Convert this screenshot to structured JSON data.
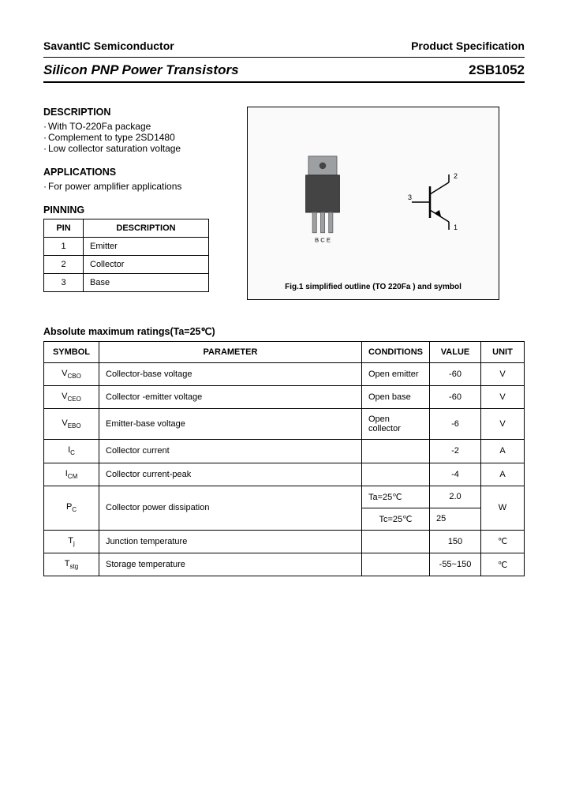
{
  "header": {
    "company": "SavantIC Semiconductor",
    "doc_type": "Product Specification",
    "title": "Silicon PNP Power Transistors",
    "part_number": "2SB1052"
  },
  "description": {
    "heading": "DESCRIPTION",
    "items": [
      "With TO-220Fa package",
      "Complement to type 2SD1480",
      "Low collector saturation voltage"
    ]
  },
  "applications": {
    "heading": "APPLICATIONS",
    "items": [
      "For power amplifier applications"
    ]
  },
  "pinning": {
    "heading": "PINNING",
    "columns": [
      "PIN",
      "DESCRIPTION"
    ],
    "rows": [
      [
        "1",
        "Emitter"
      ],
      [
        "2",
        "Collector"
      ],
      [
        "3",
        "Base"
      ]
    ]
  },
  "figure": {
    "caption": "Fig.1 simplified outline (TO 220Fa ) and symbol",
    "pin_labels": "B  C  E",
    "symbol_labels": {
      "collector": "2",
      "base": "3",
      "emitter": "1"
    },
    "package_body_color": "#444444",
    "package_tab_color": "#9da0a3",
    "lead_color": "#9da0a3",
    "outline_bg": "#fafafa"
  },
  "ratings": {
    "heading": "Absolute maximum ratings(Ta=25℃)",
    "columns": [
      "SYMBOL",
      "PARAMETER",
      "CONDITIONS",
      "VALUE",
      "UNIT"
    ],
    "rows": [
      {
        "symbol_main": "V",
        "symbol_sub": "CBO",
        "parameter": "Collector-base voltage",
        "conditions": "Open emitter",
        "value": "-60",
        "unit": "V"
      },
      {
        "symbol_main": "V",
        "symbol_sub": "CEO",
        "parameter": "Collector -emitter voltage",
        "conditions": "Open base",
        "value": "-60",
        "unit": "V"
      },
      {
        "symbol_main": "V",
        "symbol_sub": "EBO",
        "parameter": "Emitter-base voltage",
        "conditions": "Open collector",
        "value": "-6",
        "unit": "V"
      },
      {
        "symbol_main": "I",
        "symbol_sub": "C",
        "parameter": "Collector current",
        "conditions": "",
        "value": "-2",
        "unit": "A"
      },
      {
        "symbol_main": "I",
        "symbol_sub": "CM",
        "parameter": "Collector current-peak",
        "conditions": "",
        "value": "-4",
        "unit": "A"
      },
      {
        "symbol_main": "P",
        "symbol_sub": "C",
        "parameter": "Collector power dissipation",
        "conditions_a": "Ta=25℃",
        "value_a": "2.0",
        "conditions_b": "Tc=25℃",
        "value_b": "25",
        "unit": "W",
        "double": true
      },
      {
        "symbol_main": "T",
        "symbol_sub": "j",
        "parameter": "Junction temperature",
        "conditions": "",
        "value": "150",
        "unit": "℃"
      },
      {
        "symbol_main": "T",
        "symbol_sub": "stg",
        "parameter": "Storage temperature",
        "conditions": "",
        "value": "-55~150",
        "unit": "℃"
      }
    ]
  }
}
